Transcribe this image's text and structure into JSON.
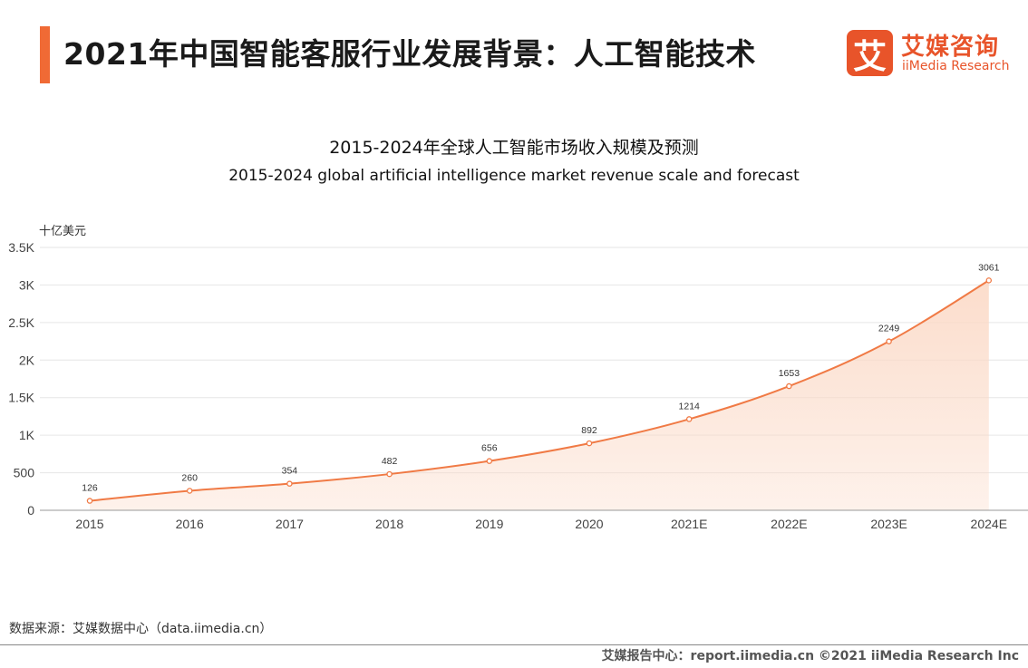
{
  "header": {
    "title": "2021年中国智能客服行业发展背景：人工智能技术",
    "logo_mark": "艾",
    "logo_cn": "艾媒咨询",
    "logo_en": "iiMedia Research"
  },
  "chart_data": {
    "type": "area",
    "title": "2015-2024年全球人工智能市场收入规模及预测",
    "subtitle": "2015-2024 global artificial intelligence market revenue scale and forecast",
    "ylabel": "十亿美元",
    "xlabel": "",
    "categories": [
      "2015",
      "2016",
      "2017",
      "2018",
      "2019",
      "2020",
      "2021E",
      "2022E",
      "2023E",
      "2024E"
    ],
    "values": [
      126,
      260,
      354,
      482,
      656,
      892,
      1214,
      1653,
      2249,
      3061
    ],
    "ylim": [
      0,
      3500
    ],
    "yticks": [
      0,
      500,
      1000,
      1500,
      2000,
      2500,
      3000,
      3500
    ],
    "ytick_labels": [
      "0",
      "500",
      "1K",
      "1.5K",
      "2K",
      "2.5K",
      "3K",
      "3.5K"
    ],
    "grid": true,
    "line_color": "#f07a45",
    "fill_color": "#fbd9c6"
  },
  "footer": {
    "source": "数据来源：艾媒数据中心（data.iimedia.cn）",
    "copyright": "艾媒报告中心：report.iimedia.cn ©2021 iiMedia Research Inc"
  }
}
